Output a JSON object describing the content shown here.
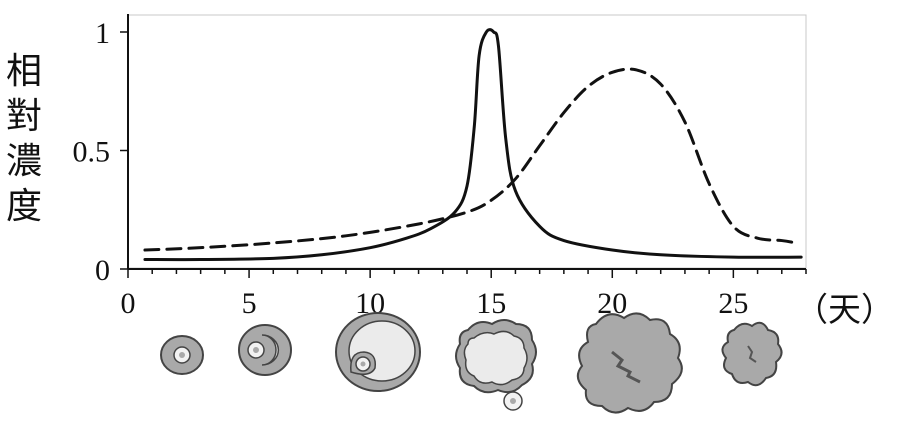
{
  "chart_data": {
    "type": "line",
    "title": "",
    "xlabel": "（天）",
    "ylabel": [
      "相",
      "對",
      "濃",
      "度"
    ],
    "xlim": [
      0,
      28
    ],
    "ylim": [
      0,
      1
    ],
    "x_ticks": [
      "0",
      "5",
      "10",
      "15",
      "20",
      "25"
    ],
    "y_ticks": [
      "0",
      "0.5",
      "1"
    ],
    "grid": false,
    "series": [
      {
        "style": "solid",
        "color": "#111111",
        "points": [
          [
            0.7,
            0.04
          ],
          [
            3,
            0.04
          ],
          [
            6,
            0.045
          ],
          [
            8,
            0.06
          ],
          [
            10,
            0.09
          ],
          [
            11.5,
            0.13
          ],
          [
            12.5,
            0.17
          ],
          [
            13.5,
            0.24
          ],
          [
            14,
            0.35
          ],
          [
            14.3,
            0.6
          ],
          [
            14.5,
            0.9
          ],
          [
            14.8,
            1.0
          ],
          [
            15.1,
            1.0
          ],
          [
            15.3,
            0.94
          ],
          [
            15.6,
            0.55
          ],
          [
            16,
            0.33
          ],
          [
            17,
            0.18
          ],
          [
            18,
            0.12
          ],
          [
            20,
            0.08
          ],
          [
            22,
            0.06
          ],
          [
            25,
            0.05
          ],
          [
            27.8,
            0.05
          ]
        ]
      },
      {
        "style": "dashed",
        "color": "#111111",
        "points": [
          [
            0.7,
            0.08
          ],
          [
            3,
            0.09
          ],
          [
            6,
            0.11
          ],
          [
            9,
            0.14
          ],
          [
            12,
            0.19
          ],
          [
            14,
            0.24
          ],
          [
            15,
            0.29
          ],
          [
            16,
            0.38
          ],
          [
            17,
            0.52
          ],
          [
            18,
            0.66
          ],
          [
            19,
            0.77
          ],
          [
            20,
            0.83
          ],
          [
            21,
            0.84
          ],
          [
            22,
            0.78
          ],
          [
            23,
            0.62
          ],
          [
            24,
            0.36
          ],
          [
            25,
            0.18
          ],
          [
            26,
            0.13
          ],
          [
            27,
            0.12
          ],
          [
            27.6,
            0.11
          ]
        ]
      }
    ]
  },
  "follicle_stage_icons": [
    "primary-follicle-icon",
    "growing-follicle-icon",
    "mature-follicle-icon",
    "ovulation-icon",
    "corpus-luteum-icon",
    "regressing-corpus-luteum-icon"
  ]
}
